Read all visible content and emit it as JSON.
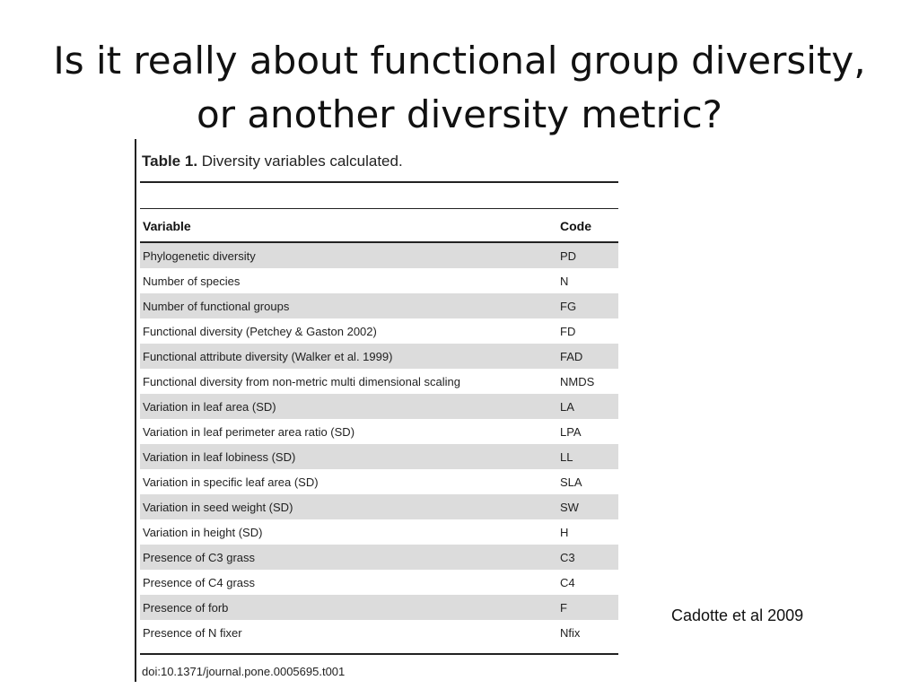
{
  "slide": {
    "title_line1": "Is it really about functional group diversity,",
    "title_line2": "or another diversity metric?",
    "citation": "Cadotte et al 2009"
  },
  "table": {
    "caption_label": "Table 1.",
    "caption_text": " Diversity variables calculated.",
    "headers": {
      "variable": "Variable",
      "code": "Code"
    },
    "rows": [
      {
        "variable": "Phylogenetic diversity",
        "code": "PD"
      },
      {
        "variable": "Number of species",
        "code": "N"
      },
      {
        "variable": "Number of functional groups",
        "code": "FG"
      },
      {
        "variable": "Functional diversity (Petchey & Gaston 2002)",
        "code": "FD"
      },
      {
        "variable": "Functional attribute diversity (Walker et al. 1999)",
        "code": "FAD"
      },
      {
        "variable": "Functional diversity from non-metric multi dimensional scaling",
        "code": "NMDS"
      },
      {
        "variable": "Variation in leaf area (SD)",
        "code": "LA"
      },
      {
        "variable": "Variation in leaf perimeter area ratio (SD)",
        "code": "LPA"
      },
      {
        "variable": "Variation in leaf lobiness (SD)",
        "code": "LL"
      },
      {
        "variable": "Variation in specific leaf area (SD)",
        "code": "SLA"
      },
      {
        "variable": "Variation in seed weight (SD)",
        "code": "SW"
      },
      {
        "variable": "Variation in height (SD)",
        "code": "H"
      },
      {
        "variable": "Presence of C3 grass",
        "code": "C3"
      },
      {
        "variable": "Presence of C4 grass",
        "code": "C4"
      },
      {
        "variable": "Presence of forb",
        "code": "F"
      },
      {
        "variable": "Presence of N fixer",
        "code": "Nfix"
      }
    ],
    "doi": "doi:10.1371/journal.pone.0005695.t001",
    "shade_color": "#dcdcdc"
  }
}
